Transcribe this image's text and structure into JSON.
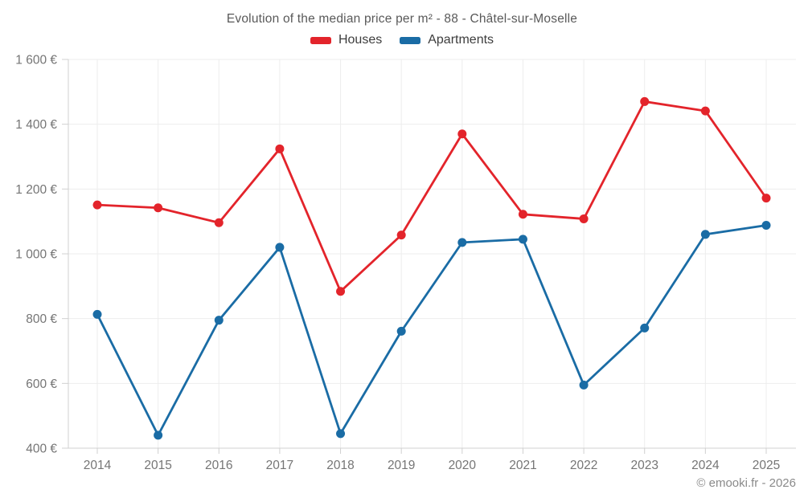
{
  "header": {
    "title": "Evolution of the median price per m² - 88 - Châtel-sur-Moselle"
  },
  "footer": {
    "copyright": "© emooki.fr - 2026"
  },
  "chart_data": {
    "type": "line",
    "title": "Evolution of the median price per m² - 88 - Châtel-sur-Moselle",
    "categories": [
      "2014",
      "2015",
      "2016",
      "2017",
      "2018",
      "2019",
      "2020",
      "2021",
      "2022",
      "2023",
      "2024",
      "2025"
    ],
    "series": [
      {
        "name": "Houses",
        "color": "#e3242b",
        "values": [
          1151,
          1142,
          1096,
          1324,
          884,
          1058,
          1370,
          1122,
          1108,
          1470,
          1441,
          1172
        ]
      },
      {
        "name": "Apartments",
        "color": "#1a6ca5",
        "values": [
          813,
          440,
          795,
          1020,
          445,
          761,
          1035,
          1045,
          595,
          771,
          1060,
          1088
        ]
      }
    ],
    "xlabel": "",
    "ylabel": "",
    "ylim": [
      400,
      1600
    ],
    "ytick_step": 200,
    "ytick_labels": [
      "400 €",
      "600 €",
      "800 €",
      "1 000 €",
      "1 200 €",
      "1 400 €",
      "1 600 €"
    ],
    "currency_suffix": "€",
    "grid": true,
    "legend_position": "top",
    "marker": "circle"
  },
  "colors": {
    "houses": "#e3242b",
    "apartments": "#1a6ca5",
    "gridline": "#ededed",
    "axis": "#d0d0d0",
    "tick_label": "#757575",
    "title_text": "#595959"
  }
}
